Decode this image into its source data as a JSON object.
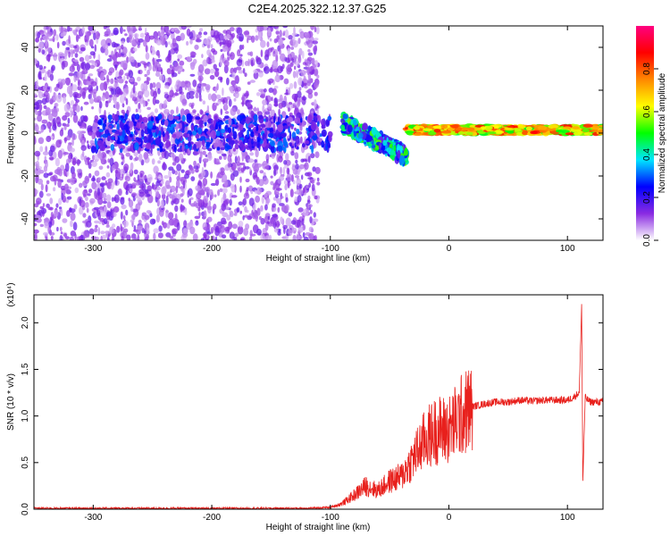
{
  "figure": {
    "title": "C2E4.2025.322.12.37.G25"
  },
  "chart_data": [
    {
      "type": "heatmap",
      "xlabel": "Height of straight line (km)",
      "ylabel": "Frequency (Hz)",
      "xlim": [
        -350,
        130
      ],
      "ylim": [
        -50,
        50
      ],
      "xticks": [
        -300,
        -200,
        -100,
        0,
        100
      ],
      "yticks": [
        -40,
        -20,
        0,
        20,
        40
      ],
      "grid": false,
      "colorbar": {
        "label": "Normalized spectral amplitude",
        "range": [
          0,
          1
        ],
        "ticks": [
          "0.0",
          "0.2",
          "0.4",
          "0.6",
          "0.8"
        ],
        "colormap": [
          "#ffffff",
          "#8a2be2",
          "#0000ff",
          "#00e5ff",
          "#00ff00",
          "#ffff00",
          "#ff8800",
          "#ff0000",
          "#ff0080"
        ]
      },
      "regions": [
        {
          "x": [
            -350,
            -110
          ],
          "freq_band": [
            -50,
            50
          ],
          "amplitude": 0.1
        },
        {
          "x": [
            -300,
            -100
          ],
          "freq_band": [
            -8,
            8
          ],
          "amplitude": 0.2
        },
        {
          "x": [
            -90,
            -35
          ],
          "freq_band": [
            -15,
            8
          ],
          "amplitude": 0.35
        },
        {
          "x": [
            -35,
            130
          ],
          "freq_band": [
            -1,
            4
          ],
          "amplitude": 0.8
        }
      ]
    },
    {
      "type": "line",
      "xlabel": "Height of straight line (km)",
      "ylabel": "SNR (10 * v/v)",
      "y_scale_label": "(x10⁴)",
      "xlim": [
        -350,
        130
      ],
      "ylim": [
        0,
        2.3
      ],
      "xticks": [
        -300,
        -200,
        -100,
        0,
        100
      ],
      "yticks": [
        "0.0",
        "0.5",
        "1.0",
        "1.5",
        "2.0"
      ],
      "grid": false,
      "series": [
        {
          "color": "#e8201c",
          "x": [
            -350,
            -300,
            -250,
            -200,
            -150,
            -120,
            -100,
            -90,
            -80,
            -70,
            -60,
            -50,
            -40,
            -30,
            -20,
            -10,
            0,
            10,
            20,
            30,
            40,
            50,
            60,
            70,
            80,
            90,
            100,
            105,
            110,
            112,
            113,
            115,
            118,
            120,
            130
          ],
          "y": [
            0.01,
            0.01,
            0.01,
            0.01,
            0.01,
            0.01,
            0.02,
            0.06,
            0.15,
            0.25,
            0.2,
            0.3,
            0.35,
            0.55,
            0.75,
            0.85,
            0.85,
            1.0,
            1.1,
            1.13,
            1.15,
            1.15,
            1.17,
            1.16,
            1.17,
            1.17,
            1.17,
            1.2,
            1.25,
            2.2,
            0.3,
            1.2,
            1.16,
            1.15,
            1.15
          ]
        }
      ]
    }
  ]
}
